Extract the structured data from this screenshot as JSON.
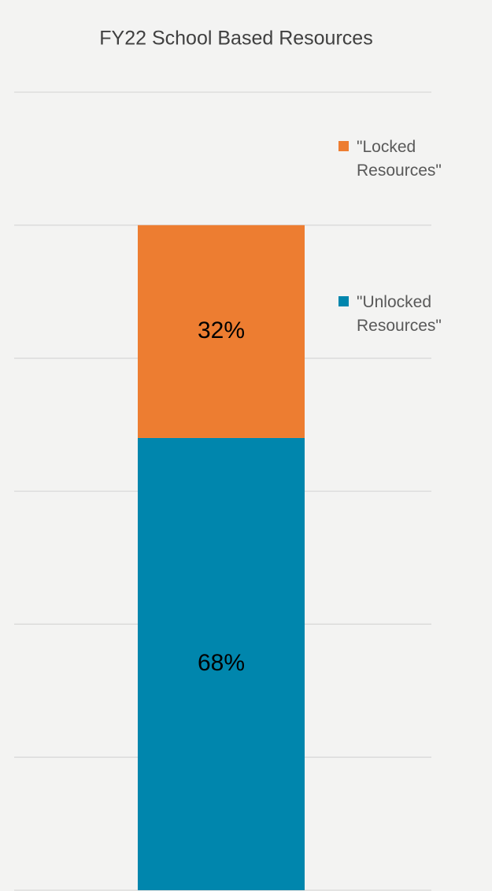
{
  "chart_data": {
    "type": "stacked_bar",
    "title": "FY22 School Based Resources",
    "categories": [
      null
    ],
    "series": [
      {
        "name": "\"Unlocked Resources\"",
        "color": "#0086ad",
        "values": [
          68
        ],
        "value_labels": [
          "68%"
        ]
      },
      {
        "name": "\"Locked Resources\"",
        "color": "#ed7d31",
        "values": [
          32
        ],
        "value_labels": [
          "32%"
        ]
      }
    ],
    "ylim": [
      0,
      120
    ],
    "yticks": [
      0,
      20,
      40,
      60,
      80,
      100,
      120
    ],
    "grid": true,
    "legend": "right"
  }
}
